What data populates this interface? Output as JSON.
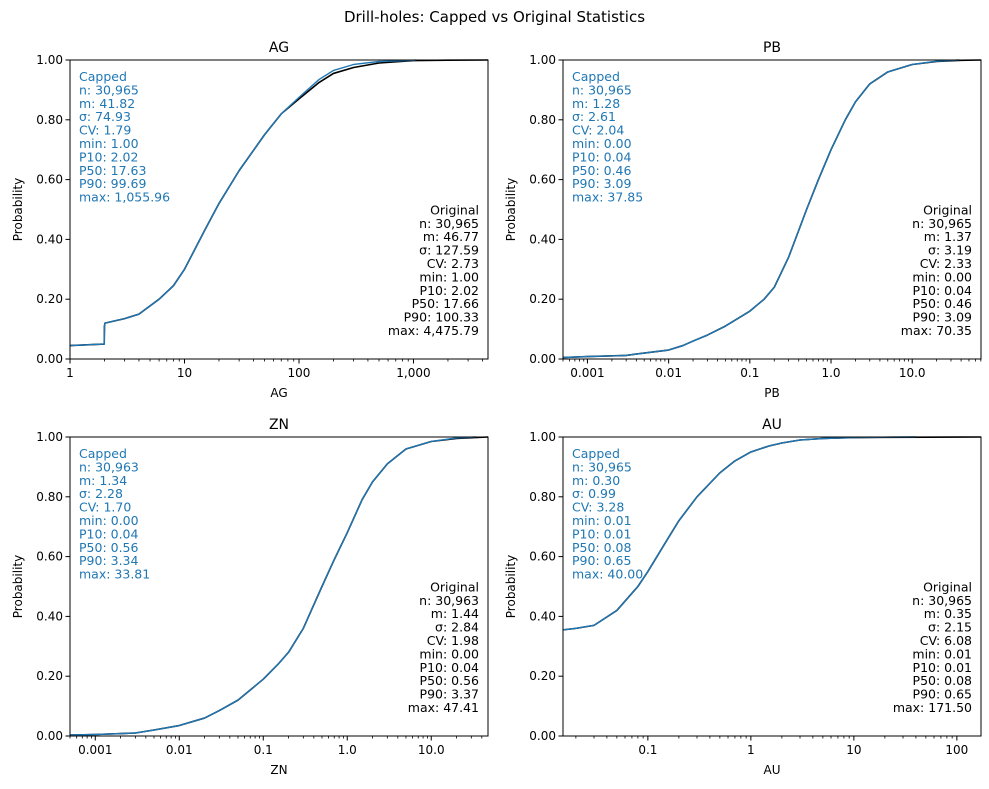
{
  "figure_title": "Drill-holes: Capped vs Original Statistics",
  "colors": {
    "capped": "#1f77b4",
    "original": "#000000",
    "axis": "#000000"
  },
  "chart_data": [
    {
      "type": "line",
      "title": "AG",
      "xlabel": "AG",
      "ylabel": "Probability",
      "xscale": "log",
      "xlim": [
        1,
        4475.79
      ],
      "ylim": [
        0,
        1
      ],
      "xticks": [
        1,
        10,
        100,
        1000
      ],
      "xtick_labels": [
        "1",
        "10",
        "100",
        "1,000"
      ],
      "yticks": [
        0,
        0.2,
        0.4,
        0.6,
        0.8,
        1.0
      ],
      "ytick_labels": [
        "0.00",
        "0.20",
        "0.40",
        "0.60",
        "0.80",
        "1.00"
      ],
      "series": [
        {
          "name": "Original",
          "color": "#000000",
          "x": [
            1,
            1.99,
            2.0,
            2.02,
            3,
            4,
            6,
            8,
            10,
            15,
            20,
            30,
            50,
            70,
            100,
            150,
            200,
            300,
            500,
            1000,
            2000,
            4475.79
          ],
          "y": [
            0.045,
            0.05,
            0.11,
            0.12,
            0.135,
            0.15,
            0.2,
            0.245,
            0.3,
            0.43,
            0.52,
            0.63,
            0.75,
            0.82,
            0.87,
            0.925,
            0.955,
            0.975,
            0.99,
            0.998,
            0.9995,
            1.0
          ]
        },
        {
          "name": "Capped",
          "color": "#1f77b4",
          "x": [
            1,
            1.99,
            2.0,
            2.02,
            3,
            4,
            6,
            8,
            10,
            15,
            20,
            30,
            50,
            70,
            100,
            150,
            200,
            300,
            500,
            1000,
            1055.96
          ],
          "y": [
            0.045,
            0.05,
            0.11,
            0.12,
            0.135,
            0.15,
            0.2,
            0.245,
            0.3,
            0.43,
            0.52,
            0.63,
            0.75,
            0.82,
            0.875,
            0.935,
            0.965,
            0.985,
            0.995,
            0.999,
            1.0
          ]
        }
      ],
      "capped_stats": [
        "Capped",
        "n: 30,965",
        "m: 41.82",
        "σ: 74.93",
        "CV: 1.79",
        "min: 1.00",
        "P10: 2.02",
        "P50: 17.63",
        "P90: 99.69",
        "max: 1,055.96"
      ],
      "original_stats": [
        "Original",
        "n: 30,965",
        "m: 46.77",
        "σ: 127.59",
        "CV: 2.73",
        "min: 1.00",
        "P10: 2.02",
        "P50: 17.66",
        "P90: 100.33",
        "max: 4,475.79"
      ]
    },
    {
      "type": "line",
      "title": "PB",
      "xlabel": "PB",
      "ylabel": "Probability",
      "xscale": "log",
      "xlim": [
        0.0005,
        70.35
      ],
      "ylim": [
        0,
        1
      ],
      "xticks": [
        0.001,
        0.01,
        0.1,
        1,
        10
      ],
      "xtick_labels": [
        "0.001",
        "0.01",
        "0.1",
        "1.0",
        "10.0"
      ],
      "yticks": [
        0,
        0.2,
        0.4,
        0.6,
        0.8,
        1.0
      ],
      "ytick_labels": [
        "0.00",
        "0.20",
        "0.40",
        "0.60",
        "0.80",
        "1.00"
      ],
      "series": [
        {
          "name": "Original",
          "color": "#000000",
          "x": [
            0.0005,
            0.001,
            0.003,
            0.005,
            0.01,
            0.015,
            0.02,
            0.03,
            0.05,
            0.1,
            0.15,
            0.2,
            0.3,
            0.5,
            0.7,
            1,
            1.5,
            2,
            3,
            5,
            10,
            20,
            40,
            70.35
          ],
          "y": [
            0.005,
            0.008,
            0.012,
            0.02,
            0.03,
            0.045,
            0.06,
            0.08,
            0.11,
            0.16,
            0.2,
            0.24,
            0.34,
            0.5,
            0.6,
            0.7,
            0.8,
            0.86,
            0.92,
            0.96,
            0.985,
            0.995,
            0.999,
            1.0
          ]
        },
        {
          "name": "Capped",
          "color": "#1f77b4",
          "x": [
            0.0005,
            0.001,
            0.003,
            0.005,
            0.01,
            0.015,
            0.02,
            0.03,
            0.05,
            0.1,
            0.15,
            0.2,
            0.3,
            0.5,
            0.7,
            1,
            1.5,
            2,
            3,
            5,
            10,
            20,
            37.85
          ],
          "y": [
            0.005,
            0.008,
            0.012,
            0.02,
            0.03,
            0.045,
            0.06,
            0.08,
            0.11,
            0.16,
            0.2,
            0.24,
            0.34,
            0.5,
            0.6,
            0.7,
            0.8,
            0.86,
            0.92,
            0.96,
            0.985,
            0.996,
            1.0
          ]
        }
      ],
      "capped_stats": [
        "Capped",
        "n: 30,965",
        "m: 1.28",
        "σ: 2.61",
        "CV: 2.04",
        "min: 0.00",
        "P10: 0.04",
        "P50: 0.46",
        "P90: 3.09",
        "max: 37.85"
      ],
      "original_stats": [
        "Original",
        "n: 30,965",
        "m: 1.37",
        "σ: 3.19",
        "CV: 2.33",
        "min: 0.00",
        "P10: 0.04",
        "P50: 0.46",
        "P90: 3.09",
        "max: 70.35"
      ]
    },
    {
      "type": "line",
      "title": "ZN",
      "xlabel": "ZN",
      "ylabel": "Probability",
      "xscale": "log",
      "xlim": [
        0.0005,
        47.41
      ],
      "ylim": [
        0,
        1
      ],
      "xticks": [
        0.001,
        0.01,
        0.1,
        1,
        10
      ],
      "xtick_labels": [
        "0.001",
        "0.01",
        "0.1",
        "1.0",
        "10.0"
      ],
      "yticks": [
        0,
        0.2,
        0.4,
        0.6,
        0.8,
        1.0
      ],
      "ytick_labels": [
        "0.00",
        "0.20",
        "0.40",
        "0.60",
        "0.80",
        "1.00"
      ],
      "series": [
        {
          "name": "Original",
          "color": "#000000",
          "x": [
            0.0005,
            0.001,
            0.003,
            0.005,
            0.01,
            0.02,
            0.03,
            0.05,
            0.1,
            0.15,
            0.2,
            0.3,
            0.5,
            0.7,
            1,
            1.5,
            2,
            3,
            5,
            10,
            20,
            47.41
          ],
          "y": [
            0.003,
            0.005,
            0.01,
            0.02,
            0.035,
            0.06,
            0.085,
            0.12,
            0.19,
            0.24,
            0.28,
            0.36,
            0.5,
            0.59,
            0.68,
            0.79,
            0.85,
            0.91,
            0.96,
            0.985,
            0.995,
            1.0
          ]
        },
        {
          "name": "Capped",
          "color": "#1f77b4",
          "x": [
            0.0005,
            0.001,
            0.003,
            0.005,
            0.01,
            0.02,
            0.03,
            0.05,
            0.1,
            0.15,
            0.2,
            0.3,
            0.5,
            0.7,
            1,
            1.5,
            2,
            3,
            5,
            10,
            20,
            33.81
          ],
          "y": [
            0.003,
            0.005,
            0.01,
            0.02,
            0.035,
            0.06,
            0.085,
            0.12,
            0.19,
            0.24,
            0.28,
            0.36,
            0.5,
            0.59,
            0.68,
            0.79,
            0.85,
            0.91,
            0.96,
            0.985,
            0.997,
            1.0
          ]
        }
      ],
      "capped_stats": [
        "Capped",
        "n: 30,963",
        "m: 1.34",
        "σ: 2.28",
        "CV: 1.70",
        "min: 0.00",
        "P10: 0.04",
        "P50: 0.56",
        "P90: 3.34",
        "max: 33.81"
      ],
      "original_stats": [
        "Original",
        "n: 30,963",
        "m: 1.44",
        "σ: 2.84",
        "CV: 1.98",
        "min: 0.00",
        "P10: 0.04",
        "P50: 0.56",
        "P90: 3.37",
        "max: 47.41"
      ]
    },
    {
      "type": "line",
      "title": "AU",
      "xlabel": "AU",
      "ylabel": "Probability",
      "xscale": "log",
      "xlim": [
        0.015,
        171.5
      ],
      "ylim": [
        0,
        1
      ],
      "xticks": [
        0.1,
        1,
        10,
        100
      ],
      "xtick_labels": [
        "0.1",
        "1",
        "10",
        "100"
      ],
      "yticks": [
        0,
        0.2,
        0.4,
        0.6,
        0.8,
        1.0
      ],
      "ytick_labels": [
        "0.00",
        "0.20",
        "0.40",
        "0.60",
        "0.80",
        "1.00"
      ],
      "series": [
        {
          "name": "Original",
          "color": "#000000",
          "x": [
            0.015,
            0.02,
            0.03,
            0.05,
            0.08,
            0.1,
            0.15,
            0.2,
            0.3,
            0.5,
            0.7,
            1,
            1.5,
            2,
            3,
            5,
            10,
            20,
            50,
            100,
            171.5
          ],
          "y": [
            0.355,
            0.36,
            0.37,
            0.42,
            0.5,
            0.55,
            0.65,
            0.72,
            0.8,
            0.88,
            0.92,
            0.95,
            0.97,
            0.98,
            0.99,
            0.995,
            0.998,
            0.999,
            0.9995,
            0.9998,
            1.0
          ]
        },
        {
          "name": "Capped",
          "color": "#1f77b4",
          "x": [
            0.015,
            0.02,
            0.03,
            0.05,
            0.08,
            0.1,
            0.15,
            0.2,
            0.3,
            0.5,
            0.7,
            1,
            1.5,
            2,
            3,
            5,
            10,
            20,
            40
          ],
          "y": [
            0.355,
            0.36,
            0.37,
            0.42,
            0.5,
            0.55,
            0.65,
            0.72,
            0.8,
            0.88,
            0.92,
            0.95,
            0.97,
            0.98,
            0.99,
            0.995,
            0.998,
            0.9995,
            1.0
          ]
        }
      ],
      "capped_stats": [
        "Capped",
        "n: 30,965",
        "m: 0.30",
        "σ: 0.99",
        "CV: 3.28",
        "min: 0.01",
        "P10: 0.01",
        "P50: 0.08",
        "P90: 0.65",
        "max: 40.00"
      ],
      "original_stats": [
        "Original",
        "n: 30,965",
        "m: 0.35",
        "σ: 2.15",
        "CV: 6.08",
        "min: 0.01",
        "P10: 0.01",
        "P50: 0.08",
        "P90: 0.65",
        "max: 171.50"
      ]
    }
  ]
}
